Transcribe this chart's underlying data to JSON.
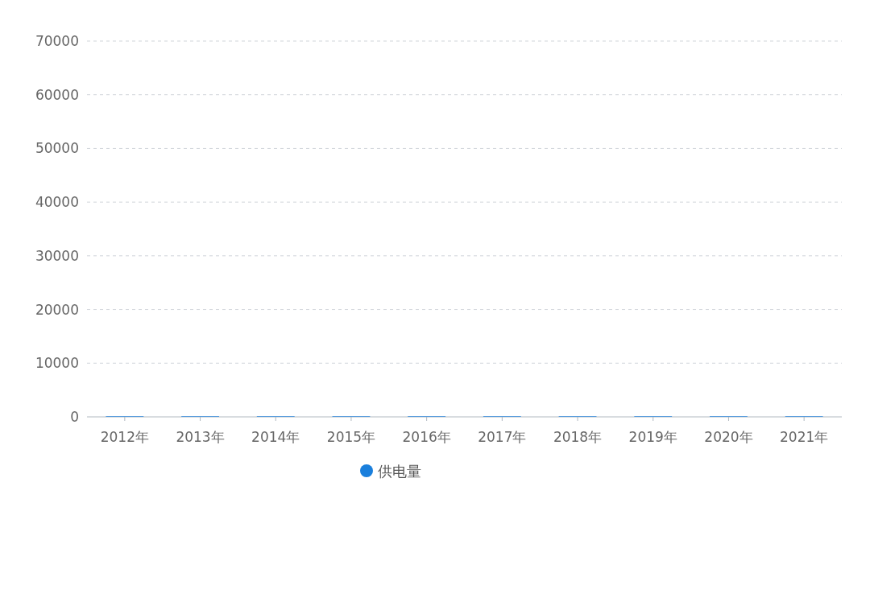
{
  "chart_data": {
    "type": "bar",
    "categories": [
      "2012年",
      "2013年",
      "2014年",
      "2015年",
      "2016年",
      "2017年",
      "2018年",
      "2019年",
      "2020年",
      "2021年"
    ],
    "series": [
      {
        "name": "供电量",
        "color": "#1a7fdc",
        "values": [
          100,
          100,
          100,
          100,
          100,
          100,
          100,
          100,
          100,
          100
        ]
      }
    ],
    "ylim": [
      0,
      70000
    ],
    "yticks": [
      0,
      10000,
      20000,
      30000,
      40000,
      50000,
      60000,
      70000
    ],
    "grid": "y",
    "legend": "bottom"
  }
}
